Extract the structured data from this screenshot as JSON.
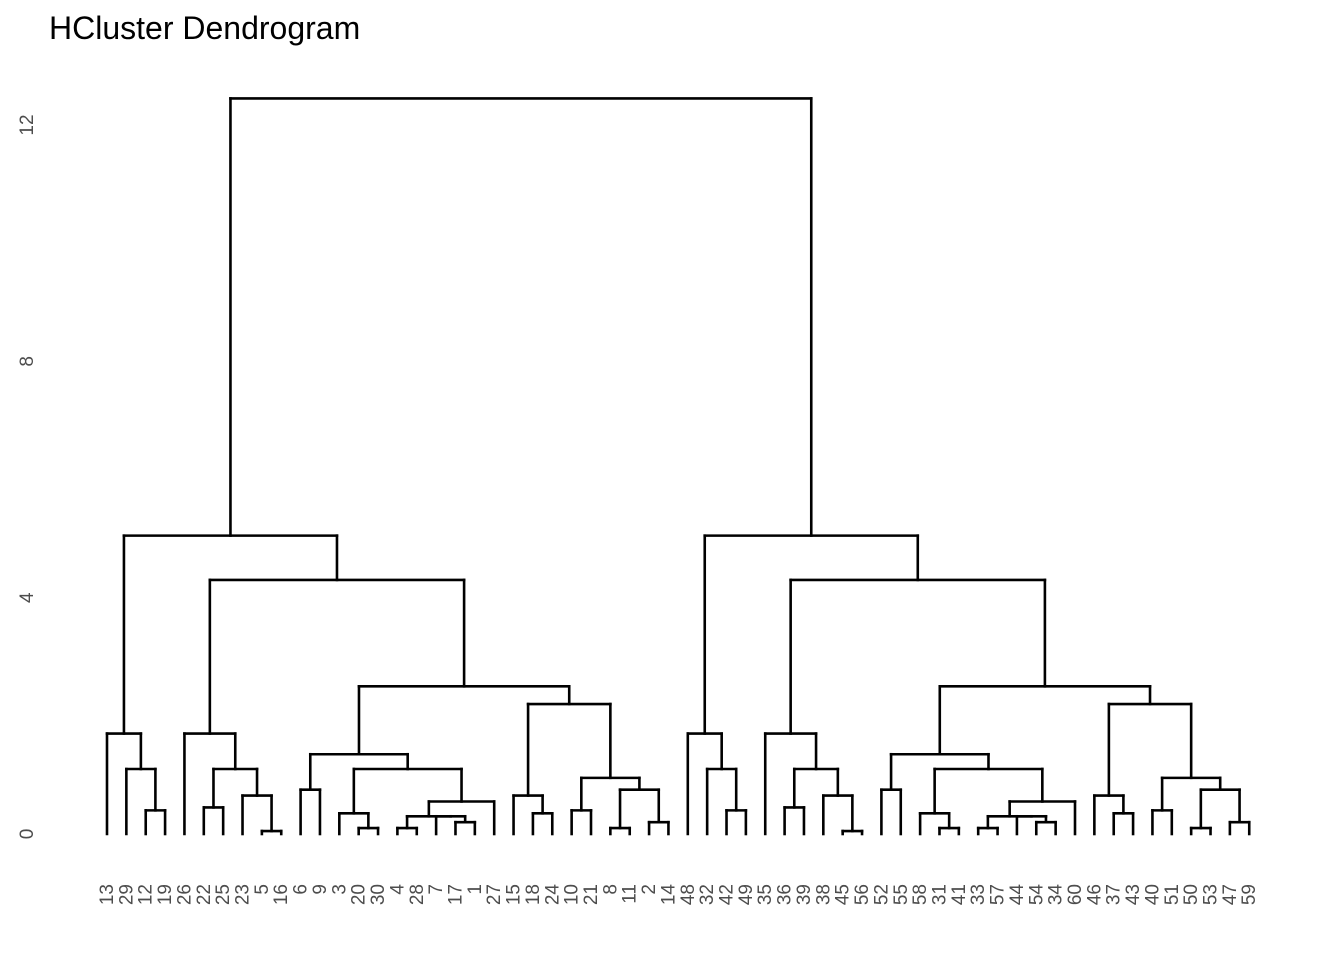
{
  "chart_data": {
    "type": "dendrogram",
    "title": "HCluster Dendrogram",
    "xlabel": "",
    "ylabel": "",
    "ylim": [
      0,
      12.5
    ],
    "yticks": [
      0,
      4,
      8,
      12
    ],
    "grid": false,
    "leaves": [
      "13",
      "29",
      "12",
      "19",
      "26",
      "22",
      "25",
      "23",
      "5",
      "16",
      "6",
      "9",
      "3",
      "20",
      "30",
      "4",
      "28",
      "7",
      "17",
      "1",
      "27",
      "15",
      "18",
      "24",
      "10",
      "21",
      "8",
      "11",
      "2",
      "14",
      "48",
      "32",
      "42",
      "49",
      "35",
      "36",
      "39",
      "38",
      "45",
      "56",
      "52",
      "55",
      "58",
      "31",
      "41",
      "33",
      "57",
      "44",
      "54",
      "34",
      "60",
      "46",
      "37",
      "43",
      "40",
      "51",
      "50",
      "53",
      "47",
      "59"
    ],
    "merges": [
      {
        "id": "m_5_16",
        "children": [
          "5",
          "16"
        ],
        "height": 0.05
      },
      {
        "id": "m_28_7",
        "children": [
          "28",
          "7"
        ],
        "height": 0.3
      },
      {
        "id": "m_m_5_16_23",
        "children": [
          "23",
          "m_5_16"
        ],
        "height": 0.65
      },
      {
        "id": "m_m_28_7_4",
        "children": [
          "4",
          "m_28_7"
        ],
        "height": 0.1
      },
      {
        "id": "m_17_1",
        "children": [
          "17",
          "1"
        ],
        "height": 0.2
      },
      {
        "id": "m_A",
        "children": [
          "m_m_28_7_4",
          "m_17_1"
        ],
        "height": 0.3
      },
      {
        "id": "m_B",
        "children": [
          "m_A",
          "27"
        ],
        "height": 0.55
      },
      {
        "id": "m_20_30",
        "children": [
          "20",
          "30"
        ],
        "height": 0.1
      },
      {
        "id": "m_C",
        "children": [
          "3",
          "m_20_30"
        ],
        "height": 0.35
      },
      {
        "id": "m_D",
        "children": [
          "m_C",
          "m_B"
        ],
        "height": 1.1
      },
      {
        "id": "m_6_9",
        "children": [
          "6",
          "9"
        ],
        "height": 0.7
      },
      {
        "id": "m_E",
        "children": [
          "m_6_9",
          "m_D"
        ],
        "height": 1.35
      },
      {
        "id": "m_24_10",
        "children": [
          "24",
          "10"
        ],
        "height": 0.3
      },
      {
        "id": "m_F",
        "children": [
          "18",
          "m_24_10"
        ],
        "height": 0.65
      },
      {
        "id": "m_11_2",
        "children": [
          "11",
          "2"
        ],
        "height": 0.1
      },
      {
        "id": "m_14_48",
        "children": [
          "14",
          "48"
        ],
        "height": 0.2
      },
      {
        "id": "m_G",
        "children": [
          "m_11_2",
          "m_14_48"
        ],
        "height": 0.75
      },
      {
        "id": "m_H",
        "children": [
          "m_G",
          "21"
        ],
        "height": 0.95
      },
      {
        "id": "m_I",
        "children": [
          "15",
          "m_F"
        ],
        "height": 0.7
      },
      {
        "id": "m_J",
        "children": [
          "m_I",
          "m_H"
        ],
        "height": 2.2
      },
      {
        "id": "m_K",
        "children": [
          "m_E",
          "m_J"
        ],
        "height": 2.5
      },
      {
        "id": "m_23_5_16",
        "children": [
          "25",
          "m_m_5_16_23"
        ],
        "height": 1.1
      },
      {
        "id": "m_L",
        "children": [
          "22",
          "m_23_5_16"
        ],
        "height": 1.7
      },
      {
        "id": "m_M",
        "children": [
          "m_L",
          "m_K"
        ],
        "height": 4.3
      },
      {
        "id": "m_12_19",
        "children": [
          "12",
          "19"
        ],
        "height": 0.4
      },
      {
        "id": "m_N",
        "children": [
          "29",
          "m_12_19"
        ],
        "height": 1.1
      },
      {
        "id": "m_O",
        "children": [
          "13",
          "m_N"
        ],
        "height": 1.7
      },
      {
        "id": "m_LEFT",
        "children": [
          "m_O",
          "m_M"
        ],
        "height": 5.05
      },
      {
        "id": "m_ROOT",
        "children": [
          "m_LEFT",
          "m_RIGHT"
        ],
        "height": 12.5
      },
      {
        "id": "m_RIGHT",
        "children": [
          "m_R1",
          "m_R2"
        ],
        "height": 5.05
      }
    ]
  }
}
